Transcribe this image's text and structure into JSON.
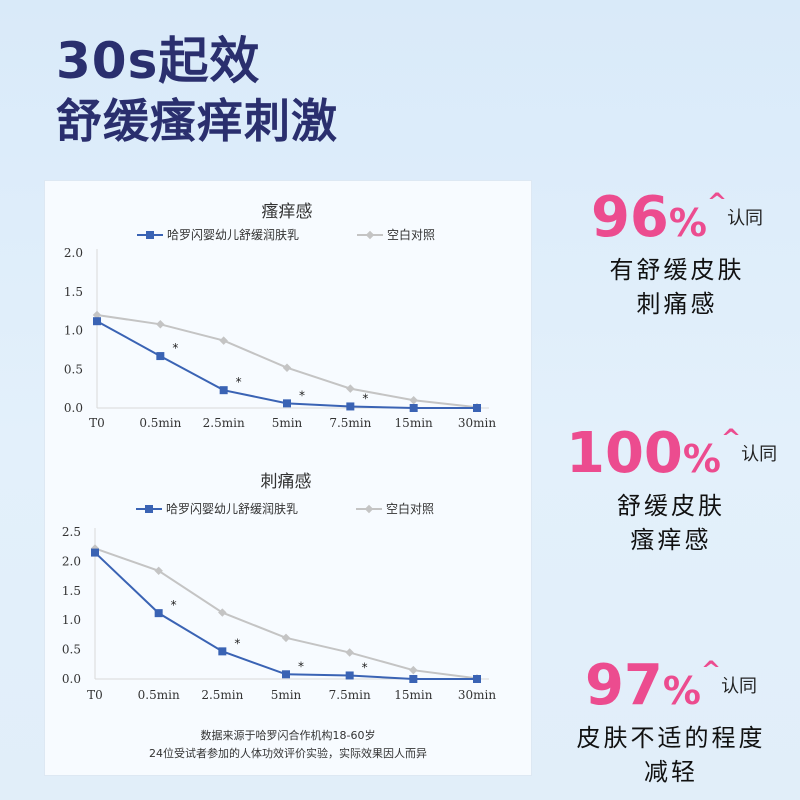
{
  "headline": {
    "line1": "30s起效",
    "line2": "舒缓瘙痒刺激"
  },
  "colors": {
    "product": "#3a63b4",
    "control": "#c4c4c4",
    "accent": "#ec4c8f",
    "title": "#2a2f6e"
  },
  "chart_data": [
    {
      "type": "line",
      "title": "瘙痒感",
      "categories": [
        "T0",
        "0.5min",
        "2.5min",
        "5min",
        "7.5min",
        "15min",
        "30min"
      ],
      "yticks": [
        "0.0",
        "0.5",
        "1.0",
        "1.5",
        "2.0"
      ],
      "ylim": [
        0,
        2
      ],
      "grid": false,
      "legend": "top-center",
      "series": [
        {
          "name": "哈罗闪婴幼儿舒缓润肤乳",
          "values": [
            1.12,
            0.67,
            0.23,
            0.06,
            0.02,
            0.0,
            0.0
          ],
          "marker": "square",
          "annotations": [
            "",
            "*",
            "*",
            "*",
            "*",
            "",
            ""
          ]
        },
        {
          "name": "空白对照",
          "values": [
            1.2,
            1.08,
            0.87,
            0.52,
            0.25,
            0.1,
            0.01
          ],
          "marker": "diamond"
        }
      ]
    },
    {
      "type": "line",
      "title": "刺痛感",
      "categories": [
        "T0",
        "0.5min",
        "2.5min",
        "5min",
        "7.5min",
        "15min",
        "30min"
      ],
      "yticks": [
        "0.0",
        "0.5",
        "1.0",
        "1.5",
        "2.0",
        "2.5"
      ],
      "ylim": [
        0,
        2.5
      ],
      "grid": false,
      "legend": "top-center",
      "series": [
        {
          "name": "哈罗闪婴幼儿舒缓润肤乳",
          "values": [
            2.15,
            1.12,
            0.47,
            0.08,
            0.06,
            0.0,
            0.0
          ],
          "marker": "square",
          "annotations": [
            "",
            "*",
            "*",
            "*",
            "*",
            "",
            ""
          ]
        },
        {
          "name": "空白对照",
          "values": [
            2.22,
            1.84,
            1.13,
            0.7,
            0.45,
            0.15,
            0.01
          ],
          "marker": "diamond"
        }
      ]
    }
  ],
  "footnote": {
    "line1": "数据来源于哈罗闪合作机构18-60岁",
    "line2": "24位受试者参加的人体功效评价实验，实际效果因人而异"
  },
  "stats": [
    {
      "number": "96",
      "percent": "%",
      "caret": "^",
      "suffix": "认同",
      "desc1": "有舒缓皮肤",
      "desc2": "刺痛感"
    },
    {
      "number": "100",
      "percent": "%",
      "caret": "^",
      "suffix": "认同",
      "desc1": "舒缓皮肤",
      "desc2": "瘙痒感"
    },
    {
      "number": "97",
      "percent": "%",
      "caret": "^",
      "suffix": "认同",
      "desc1": "皮肤不适的程度",
      "desc2": "减轻"
    }
  ]
}
